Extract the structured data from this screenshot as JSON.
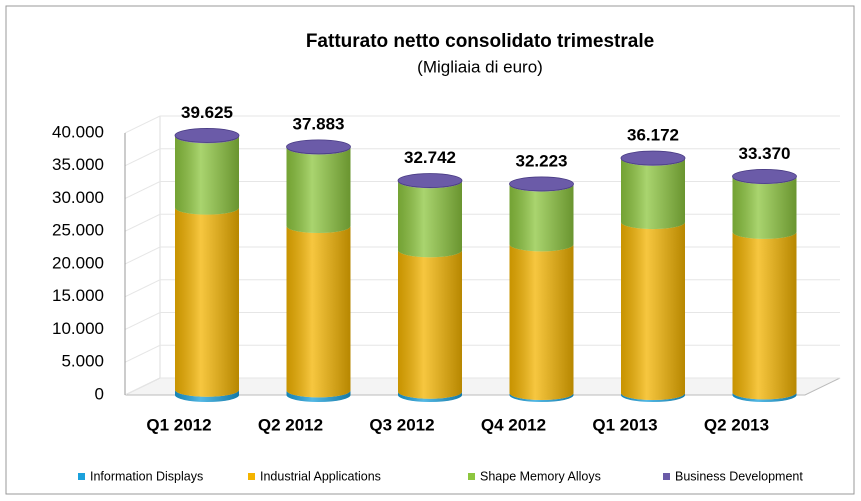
{
  "chart_data": {
    "type": "bar",
    "stacked": true,
    "title": "Fatturato netto consolidato trimestrale",
    "subtitle": "(Migliaia di euro)",
    "categories": [
      "Q1 2012",
      "Q2 2012",
      "Q3 2012",
      "Q4 2012",
      "Q1 2013",
      "Q2 2013"
    ],
    "series": [
      {
        "name": "Information Displays",
        "color": "#1ba1dc",
        "values": [
          800,
          700,
          500,
          300,
          300,
          400
        ]
      },
      {
        "name": "Industrial Applications",
        "color": "#f4b400",
        "values": [
          27800,
          25100,
          21600,
          22700,
          26100,
          24500
        ]
      },
      {
        "name": "Shape Memory Alloys",
        "color": "#8dc63f",
        "values": [
          10900,
          11983,
          10542,
          9123,
          9672,
          8370
        ]
      },
      {
        "name": "Business Development",
        "color": "#6b5ba8",
        "values": [
          125,
          100,
          100,
          100,
          100,
          100
        ]
      }
    ],
    "totals": [
      39625,
      37883,
      32742,
      32223,
      36172,
      33370
    ],
    "value_labels": [
      "39.625",
      "37.883",
      "32.742",
      "32.223",
      "36.172",
      "33.370"
    ],
    "ylim": [
      0,
      40000
    ],
    "yticks": [
      0,
      {
        "value": 5000,
        "label": "5.000"
      },
      {
        "value": 10000,
        "label": "10.000"
      },
      {
        "value": 15000,
        "label": "15.000"
      },
      {
        "value": 20000,
        "label": "20.000"
      },
      {
        "value": 25000,
        "label": "25.000"
      },
      {
        "value": 30000,
        "label": "30.000"
      },
      {
        "value": 35000,
        "label": "35.000"
      },
      {
        "value": 40000,
        "label": "40.000"
      }
    ],
    "grid": true,
    "legend": "bottom"
  }
}
